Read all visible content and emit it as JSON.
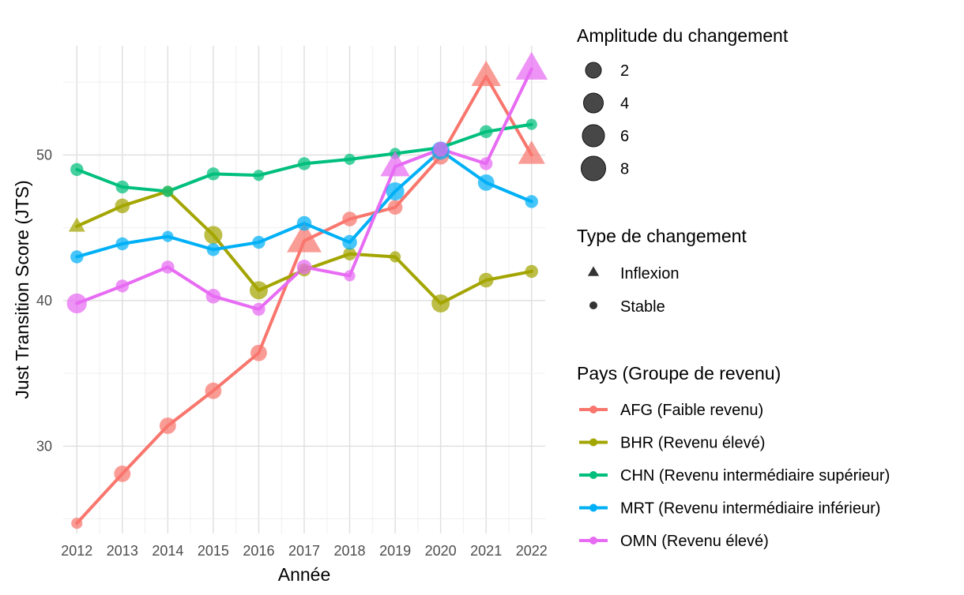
{
  "chart_data": {
    "type": "line",
    "title": "",
    "xlabel": "Année",
    "ylabel": "Just Transition Score (JTS)",
    "x": [
      2012,
      2013,
      2014,
      2015,
      2016,
      2017,
      2018,
      2019,
      2020,
      2021,
      2022
    ],
    "xlim": [
      2011.7,
      2022.3
    ],
    "ylim": [
      24,
      57.5
    ],
    "yticks": [
      30,
      40,
      50
    ],
    "grid": true,
    "series": [
      {
        "name": "AFG (Faible revenu)",
        "color": "#F8766D",
        "values": [
          24.7,
          28.1,
          31.4,
          33.8,
          36.4,
          44.1,
          45.6,
          46.4,
          49.9,
          55.4,
          50.0
        ],
        "magnitude": [
          1,
          4,
          4,
          4,
          4,
          8,
          3,
          3,
          4,
          6,
          5
        ],
        "change_type": [
          "Stable",
          "Stable",
          "Stable",
          "Stable",
          "Stable",
          "Inflexion",
          "Stable",
          "Stable",
          "Stable",
          "Inflexion",
          "Inflexion"
        ]
      },
      {
        "name": "BHR (Revenu élevé)",
        "color": "#A3A500",
        "values": [
          45.1,
          46.5,
          47.5,
          44.5,
          40.7,
          42.1,
          43.2,
          43.0,
          39.8,
          41.4,
          42.0
        ],
        "magnitude": [
          1,
          3,
          1,
          5,
          5,
          2,
          2,
          1,
          5,
          3,
          2
        ],
        "change_type": [
          "Inflexion",
          "Stable",
          "Stable",
          "Stable",
          "Stable",
          "Stable",
          "Stable",
          "Stable",
          "Stable",
          "Stable",
          "Stable"
        ]
      },
      {
        "name": "CHN (Revenu intermédiaire supérieur)",
        "color": "#00BF7D",
        "values": [
          49.0,
          47.8,
          47.5,
          48.7,
          48.6,
          49.4,
          49.7,
          50.1,
          50.5,
          51.6,
          52.1
        ],
        "magnitude": [
          2,
          2,
          1,
          2,
          1,
          2,
          1,
          1,
          1,
          2,
          1
        ],
        "change_type": [
          "Stable",
          "Stable",
          "Stable",
          "Stable",
          "Stable",
          "Stable",
          "Stable",
          "Stable",
          "Stable",
          "Stable",
          "Stable"
        ]
      },
      {
        "name": "MRT (Revenu intermédiaire inférieur)",
        "color": "#00B0F6",
        "values": [
          43.0,
          43.9,
          44.4,
          43.5,
          44.0,
          45.3,
          44.0,
          47.5,
          50.3,
          48.1,
          46.8
        ],
        "magnitude": [
          2,
          2,
          1,
          2,
          2,
          3,
          3,
          5,
          5,
          4,
          2
        ],
        "change_type": [
          "Stable",
          "Stable",
          "Stable",
          "Stable",
          "Stable",
          "Stable",
          "Stable",
          "Stable",
          "Stable",
          "Stable",
          "Stable"
        ]
      },
      {
        "name": "OMN (Revenu élevé)",
        "color": "#E76BF3",
        "values": [
          39.8,
          41.0,
          42.3,
          40.3,
          39.4,
          42.3,
          41.7,
          49.2,
          50.4,
          49.4,
          55.9
        ],
        "magnitude": [
          6,
          2,
          2,
          3,
          2,
          3,
          1,
          6,
          3,
          2,
          7
        ],
        "change_type": [
          "Stable",
          "Stable",
          "Stable",
          "Stable",
          "Stable",
          "Stable",
          "Stable",
          "Inflexion",
          "Stable",
          "Stable",
          "Inflexion"
        ]
      }
    ],
    "legend": {
      "size_title": "Amplitude du changement",
      "size_values": [
        "2",
        "4",
        "6",
        "8"
      ],
      "shape_title": "Type de changement",
      "shape_values": [
        "Inflexion",
        "Stable"
      ],
      "color_title": "Pays (Groupe de revenu)"
    }
  }
}
